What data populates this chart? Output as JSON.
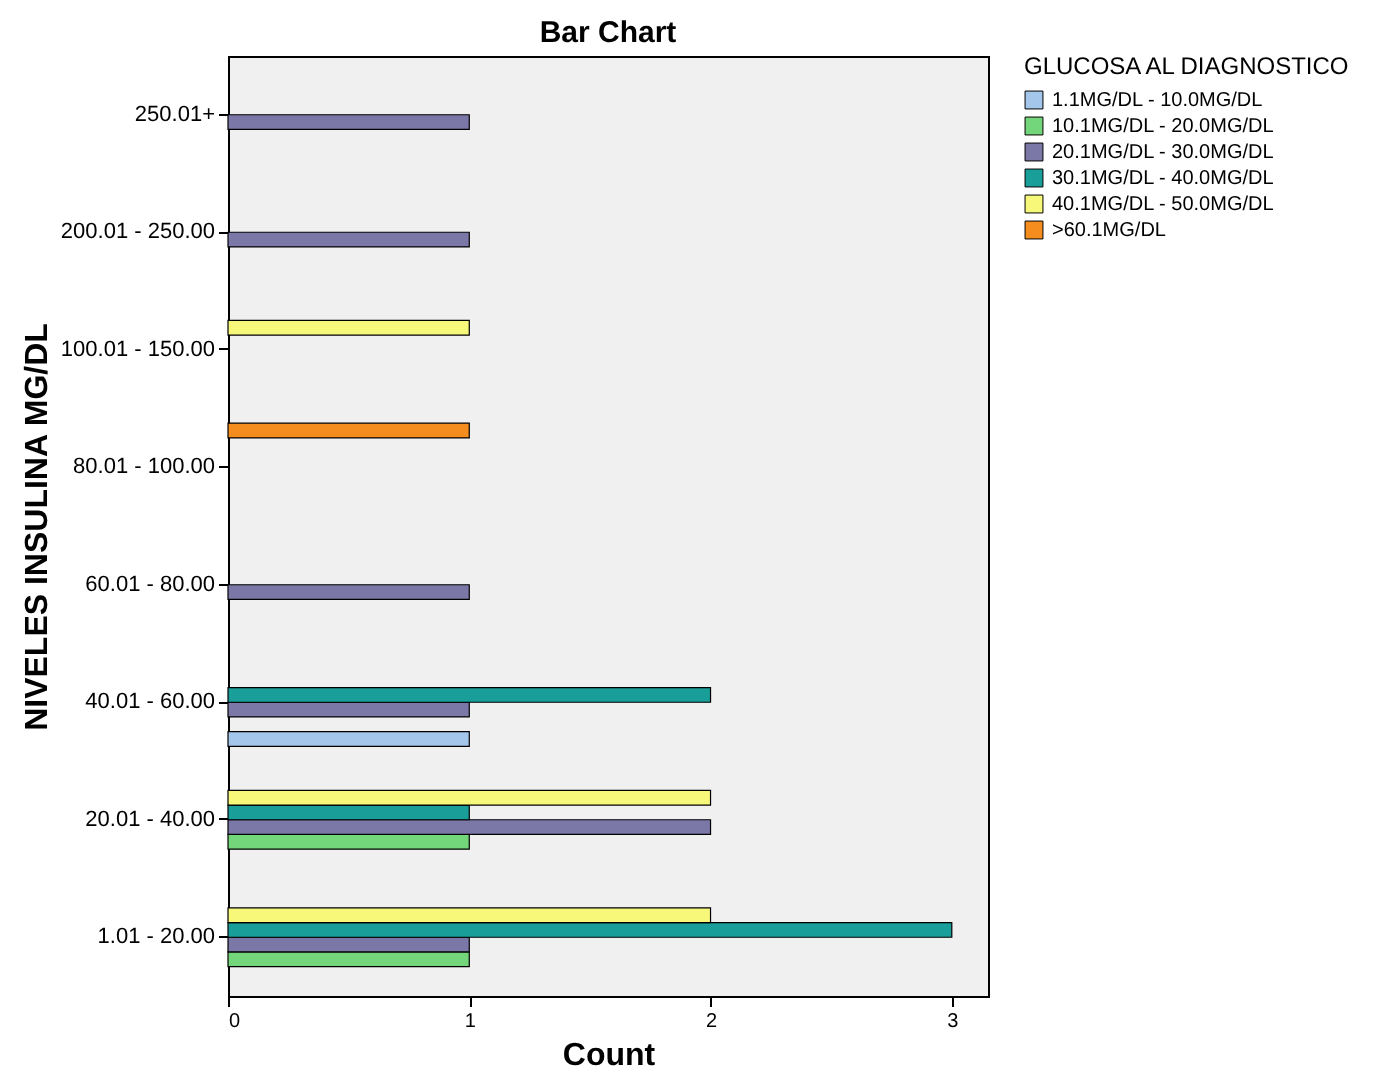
{
  "chart_data": {
    "type": "bar",
    "orientation": "horizontal",
    "title": "Bar Chart",
    "xlabel": "Count",
    "ylabel": "NIVELES INSULINA MG/DL",
    "legend_title": "GLUCOSA AL DIAGNOSTICO",
    "legend": "top right",
    "grid": false,
    "categories": [
      "250.01+",
      "200.01 - 250.00",
      "100.01 - 150.00",
      "80.01 - 100.00",
      "60.01 - 80.00",
      "40.01 - 60.00",
      "20.01 - 40.00",
      "1.01 - 20.00"
    ],
    "xlim": [
      0,
      3.15
    ],
    "xticks": [
      0,
      1,
      2,
      3
    ],
    "series": [
      {
        "name": "1.1MG/DL - 10.0MG/DL",
        "color": "#a4c6ea",
        "values": [
          null,
          null,
          null,
          null,
          null,
          1,
          null,
          null
        ]
      },
      {
        "name": "10.1MG/DL - 20.0MG/DL",
        "color": "#74d67a",
        "values": [
          null,
          null,
          null,
          null,
          null,
          null,
          1,
          1
        ]
      },
      {
        "name": "20.1MG/DL - 30.0MG/DL",
        "color": "#7b78a8",
        "values": [
          1,
          1,
          null,
          null,
          1,
          1,
          2,
          1
        ]
      },
      {
        "name": "30.1MG/DL - 40.0MG/DL",
        "color": "#1a9e9a",
        "values": [
          null,
          null,
          null,
          null,
          null,
          2,
          1,
          3
        ]
      },
      {
        "name": "40.1MG/DL - 50.0MG/DL",
        "color": "#f7f77a",
        "values": [
          null,
          null,
          1,
          null,
          null,
          null,
          2,
          2
        ]
      },
      {
        "name": ">60.1MG/DL",
        "color": "#f58c1e",
        "values": [
          null,
          null,
          null,
          1,
          null,
          null,
          null,
          null
        ]
      }
    ]
  }
}
